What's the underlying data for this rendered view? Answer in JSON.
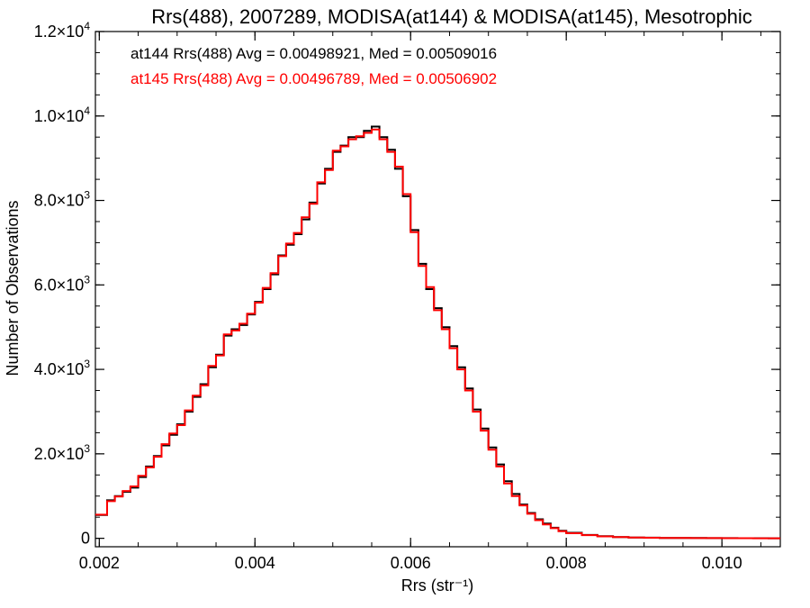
{
  "chart_data": {
    "type": "line",
    "step": true,
    "title": "Rrs(488), 2007289, MODISA(at144) & MODISA(at145), Mesotrophic",
    "xlabel": "Rrs (str⁻¹)",
    "ylabel": "Number of Observations",
    "xlim": [
      0.00195,
      0.01075
    ],
    "ylim": [
      -200,
      12000
    ],
    "grid": false,
    "x_ticks": [
      {
        "value": 0.002,
        "label": "0.002"
      },
      {
        "value": 0.004,
        "label": "0.004"
      },
      {
        "value": 0.006,
        "label": "0.006"
      },
      {
        "value": 0.008,
        "label": "0.008"
      },
      {
        "value": 0.01,
        "label": "0.010"
      }
    ],
    "y_ticks": [
      {
        "value": 0,
        "mantissa": "0",
        "exp": ""
      },
      {
        "value": 2000,
        "mantissa": "2.0×10",
        "exp": "3"
      },
      {
        "value": 4000,
        "mantissa": "4.0×10",
        "exp": "3"
      },
      {
        "value": 6000,
        "mantissa": "6.0×10",
        "exp": "3"
      },
      {
        "value": 8000,
        "mantissa": "8.0×10",
        "exp": "3"
      },
      {
        "value": 10000,
        "mantissa": "1.0×10",
        "exp": "4"
      },
      {
        "value": 12000,
        "mantissa": "1.2×10",
        "exp": "4"
      }
    ],
    "x": [
      0.00195,
      0.0021,
      0.0022,
      0.0023,
      0.0024,
      0.0025,
      0.0026,
      0.0027,
      0.0028,
      0.0029,
      0.003,
      0.0031,
      0.0032,
      0.0033,
      0.0034,
      0.0035,
      0.0036,
      0.0037,
      0.0038,
      0.0039,
      0.004,
      0.0041,
      0.0042,
      0.0043,
      0.0044,
      0.0045,
      0.0046,
      0.0047,
      0.0048,
      0.0049,
      0.005,
      0.0051,
      0.0052,
      0.0053,
      0.0054,
      0.0055,
      0.0056,
      0.0057,
      0.0058,
      0.0059,
      0.006,
      0.0061,
      0.0062,
      0.0063,
      0.0064,
      0.0065,
      0.0066,
      0.0067,
      0.0068,
      0.0069,
      0.007,
      0.0071,
      0.0072,
      0.0073,
      0.0074,
      0.0075,
      0.0076,
      0.0077,
      0.0078,
      0.0079,
      0.008,
      0.0082,
      0.0084,
      0.0086,
      0.0088,
      0.009,
      0.0092,
      0.0094,
      0.0096,
      0.0098,
      0.01,
      0.0102,
      0.0104,
      0.0106,
      0.01075
    ],
    "series": [
      {
        "name": "at144",
        "color": "#000000",
        "values": [
          550,
          900,
          1000,
          1100,
          1200,
          1450,
          1700,
          1950,
          2200,
          2450,
          2700,
          3000,
          3350,
          3650,
          4050,
          4350,
          4800,
          4950,
          5050,
          5300,
          5600,
          5900,
          6250,
          6700,
          6950,
          7200,
          7550,
          7950,
          8400,
          8750,
          9150,
          9300,
          9500,
          9500,
          9650,
          9750,
          9500,
          9200,
          8750,
          8100,
          7300,
          6500,
          5900,
          5450,
          5000,
          4550,
          4050,
          3550,
          3050,
          2600,
          2150,
          1750,
          1350,
          1050,
          800,
          600,
          450,
          350,
          250,
          180,
          130,
          80,
          50,
          30,
          20,
          15,
          10,
          8,
          6,
          5,
          4,
          3,
          2,
          1,
          0
        ]
      },
      {
        "name": "at145",
        "color": "#ff0000",
        "values": [
          560,
          880,
          990,
          1120,
          1230,
          1480,
          1680,
          1930,
          2230,
          2480,
          2680,
          3030,
          3380,
          3620,
          4080,
          4330,
          4830,
          4920,
          5080,
          5320,
          5580,
          5930,
          6280,
          6680,
          6980,
          7230,
          7600,
          7920,
          8430,
          8720,
          9180,
          9280,
          9450,
          9520,
          9600,
          9680,
          9450,
          9150,
          8800,
          8150,
          7250,
          6450,
          5950,
          5400,
          4950,
          4500,
          4000,
          3500,
          3000,
          2550,
          2100,
          1700,
          1300,
          1000,
          780,
          580,
          430,
          330,
          240,
          170,
          120,
          75,
          45,
          28,
          18,
          13,
          9,
          7,
          5,
          4,
          3,
          2,
          1,
          1,
          0
        ]
      }
    ],
    "annotations": [
      {
        "text": "at144 Rrs(488) Avg = 0.00498921, Med = 0.00509016",
        "color": "#000000"
      },
      {
        "text": "at145 Rrs(488) Avg = 0.00496789, Med = 0.00506902",
        "color": "#ff0000"
      }
    ]
  }
}
